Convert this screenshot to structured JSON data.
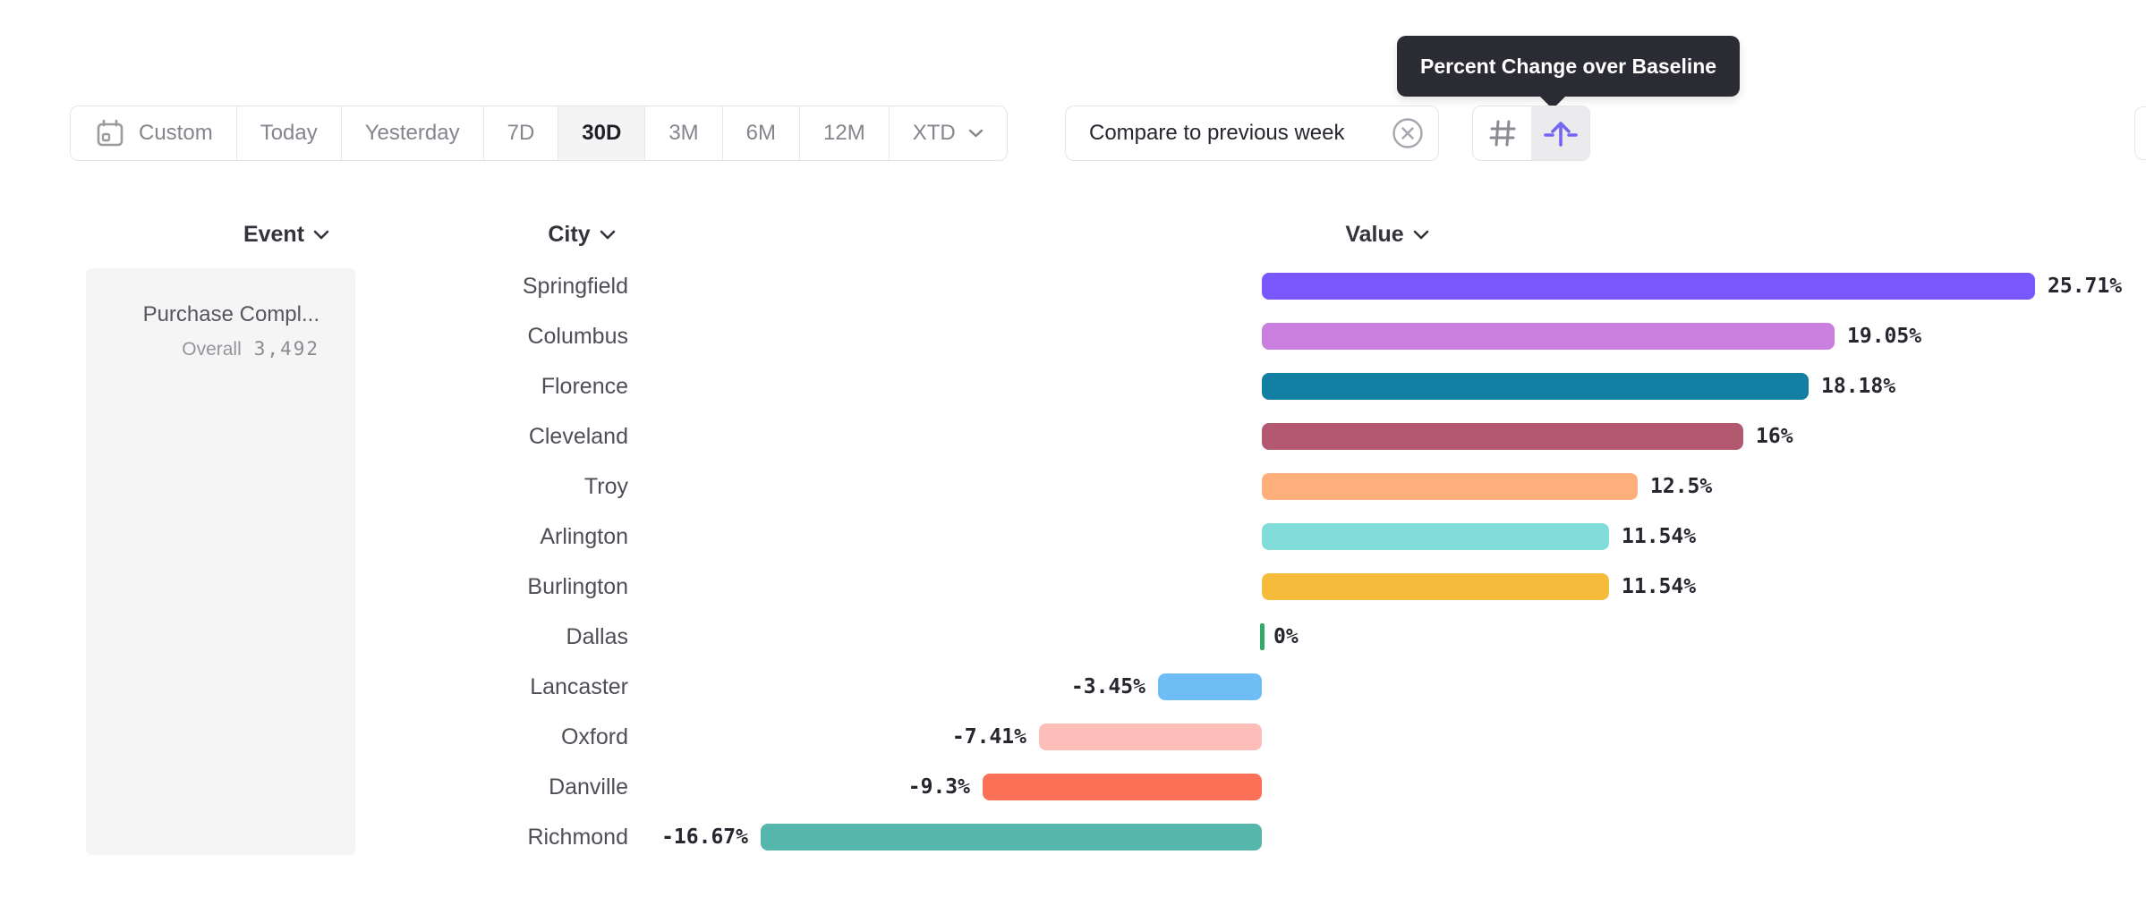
{
  "tooltip": {
    "text": "Percent Change over Baseline"
  },
  "toolbar": {
    "date_ranges": [
      {
        "label": "Custom",
        "icon": "calendar-icon",
        "active": false
      },
      {
        "label": "Today",
        "active": false
      },
      {
        "label": "Yesterday",
        "active": false
      },
      {
        "label": "7D",
        "active": false
      },
      {
        "label": "30D",
        "active": true
      },
      {
        "label": "3M",
        "active": false
      },
      {
        "label": "6M",
        "active": false
      },
      {
        "label": "12M",
        "active": false
      },
      {
        "label": "XTD",
        "chevron": true,
        "active": false
      }
    ],
    "compare_chip": {
      "label": "Compare to previous week",
      "icon": "close-circle-icon"
    },
    "view_toggle": [
      {
        "name": "absolute-values",
        "icon": "hash-icon",
        "active": false
      },
      {
        "name": "percent-change",
        "icon": "arrow-up-baseline-icon",
        "active": true
      }
    ]
  },
  "columns": {
    "event": "Event",
    "city": "City",
    "value": "Value"
  },
  "event_panel": {
    "title": "Purchase Compl...",
    "subtitle_label": "Overall",
    "subtitle_value": "3,492"
  },
  "chart_data": {
    "type": "bar",
    "orientation": "horizontal",
    "title": "Percent Change over Baseline",
    "xlabel": "Value",
    "ylabel": "City",
    "unit": "%",
    "baseline": 0,
    "categories": [
      "Springfield",
      "Columbus",
      "Florence",
      "Cleveland",
      "Troy",
      "Arlington",
      "Burlington",
      "Dallas",
      "Lancaster",
      "Oxford",
      "Danville",
      "Richmond"
    ],
    "values": [
      25.71,
      19.05,
      18.18,
      16,
      12.5,
      11.54,
      11.54,
      0,
      -3.45,
      -7.41,
      -9.3,
      -16.67
    ],
    "value_labels": [
      "25.71%",
      "19.05%",
      "18.18%",
      "16%",
      "12.5%",
      "11.54%",
      "11.54%",
      "0%",
      "-3.45%",
      "-7.41%",
      "-9.3%",
      "-16.67%"
    ],
    "colors": [
      "#7857FD",
      "#C87FDE",
      "#117EA2",
      "#B2596F",
      "#FFAF7B",
      "#80DDD9",
      "#F5BC3C",
      "#34A866",
      "#70BCF4",
      "#FDBDB9",
      "#FB7158",
      "#55B7AB"
    ],
    "xlim": [
      -20,
      29
    ],
    "grid": false,
    "legend": false
  }
}
